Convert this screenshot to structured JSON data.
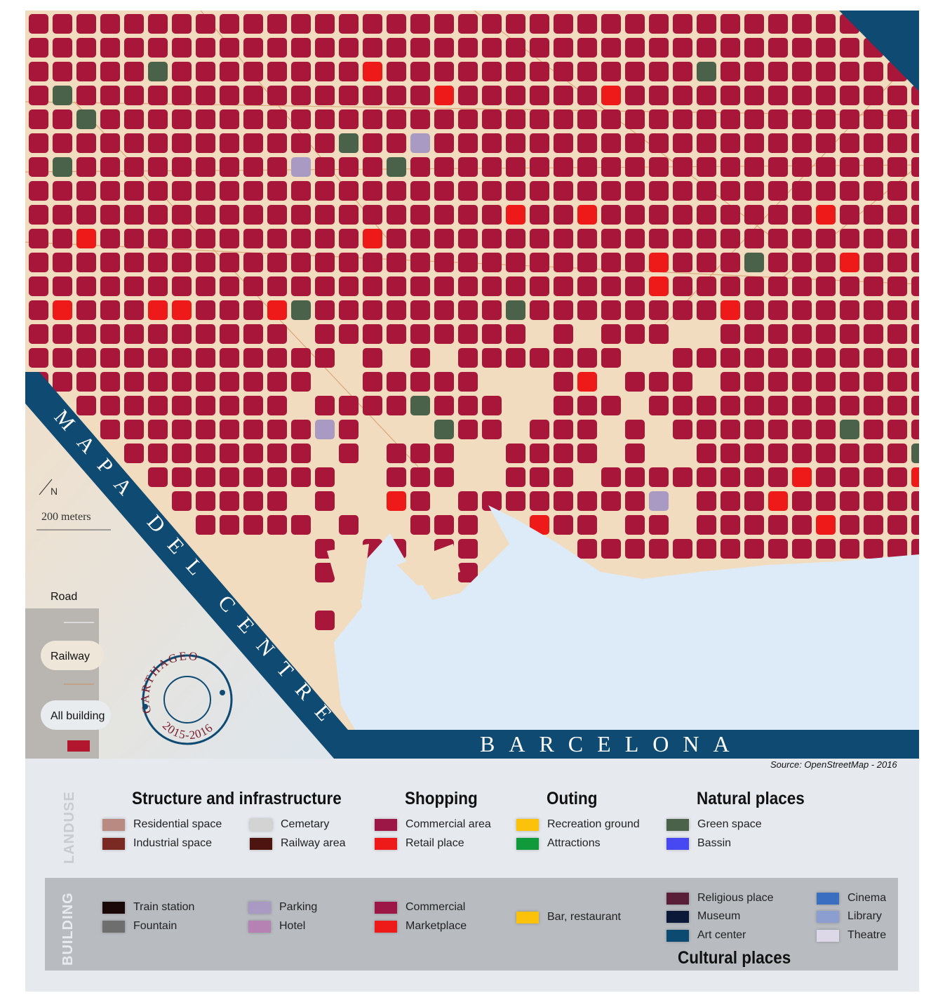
{
  "map": {
    "title_diagonal": "MAPA DEL CENTRE DE",
    "title_horizontal": "BARCELONA",
    "source": "Source: OpenStreetMap - 2016",
    "north_label": "N",
    "scale_label": "200 meters",
    "stamp": {
      "top": "CARTHAGEO",
      "bottom": "2015-2016"
    },
    "colors": {
      "building": "#a8173a",
      "ground": "#f1dcc0",
      "sea": "#dcebf7",
      "band": "#0e4a72",
      "road": "#f7e9d6",
      "railway": "#c98e5f"
    }
  },
  "map_legend": [
    {
      "label": "Road",
      "color": "#ffffff"
    },
    {
      "label": "Railway",
      "color": "#c98e5f"
    },
    {
      "label": "All building",
      "color": "#b3172f"
    }
  ],
  "landuse": {
    "heading": "LANDUSE",
    "groups": [
      {
        "title": "Structure and infrastructure",
        "items": [
          {
            "label": "Residential space",
            "color": "#b98a82"
          },
          {
            "label": "Industrial space",
            "color": "#7a2a22"
          },
          {
            "label": "Cemetary",
            "color": "#d3d3d3"
          },
          {
            "label": "Railway area",
            "color": "#4e1410"
          }
        ]
      },
      {
        "title": "Shopping",
        "items": [
          {
            "label": "Commercial area",
            "color": "#9c1746"
          },
          {
            "label": "Retail place",
            "color": "#ee1a1a"
          }
        ]
      },
      {
        "title": "Outing",
        "items": [
          {
            "label": "Recreation ground",
            "color": "#fcc10a"
          },
          {
            "label": "Attractions",
            "color": "#109a3c"
          }
        ]
      },
      {
        "title": "Natural places",
        "items": [
          {
            "label": "Green space",
            "color": "#4b624a"
          },
          {
            "label": "Bassin",
            "color": "#4848f2"
          }
        ]
      }
    ]
  },
  "building": {
    "heading": "BUILDING",
    "items": [
      {
        "label": "Train station",
        "color": "#1a0808"
      },
      {
        "label": "Fountain",
        "color": "#6e6e6e"
      },
      {
        "label": "Parking",
        "color": "#a99ac4"
      },
      {
        "label": "Hotel",
        "color": "#b682b4"
      },
      {
        "label": "Commercial",
        "color": "#9c1746"
      },
      {
        "label": "Marketplace",
        "color": "#ee1a1a"
      },
      {
        "label": "Bar, restaurant",
        "color": "#fcc10a"
      }
    ],
    "cultural": {
      "title": "Cultural places",
      "items": [
        {
          "label": "Religious place",
          "color": "#5a1f38"
        },
        {
          "label": "Museum",
          "color": "#0c1838"
        },
        {
          "label": "Art center",
          "color": "#0d4a72"
        },
        {
          "label": "Cinema",
          "color": "#3a6ec0"
        },
        {
          "label": "Library",
          "color": "#8c9ed0"
        },
        {
          "label": "Theatre",
          "color": "#dcd8e8"
        }
      ]
    }
  }
}
